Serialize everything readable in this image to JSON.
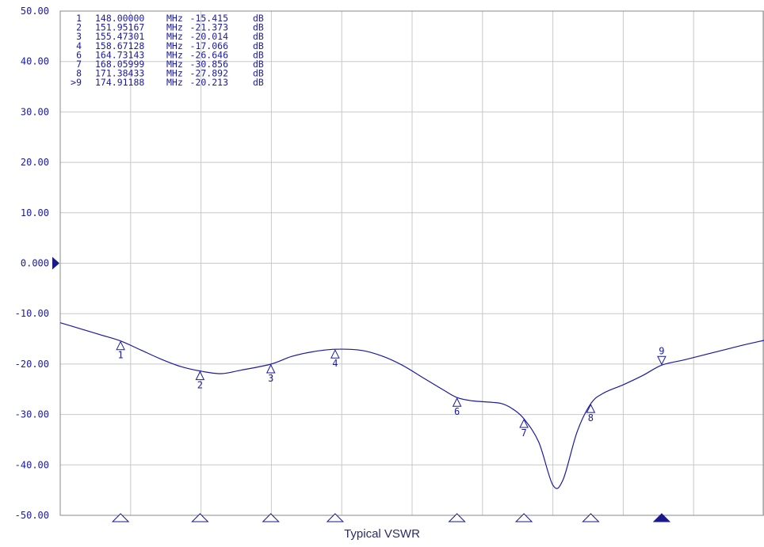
{
  "caption": "Typical VSWR",
  "colors": {
    "trace": "#1a1aa0",
    "grid": "#c8c8c8",
    "text": "#1a1aa0",
    "axis_text": "#1a1aa0"
  },
  "chart_data": {
    "type": "line",
    "title": "",
    "xlabel": "",
    "ylabel": "",
    "xunit": "MHz",
    "yunit": "dB",
    "xlim": [
      145.0,
      180.0
    ],
    "ylim": [
      -50,
      50
    ],
    "y_ticks": [
      "50.00",
      "40.00",
      "30.00",
      "20.00",
      "10.00",
      "0.000",
      "-10.00",
      "-20.00",
      "-30.00",
      "-40.00",
      "-50.00"
    ],
    "reference_level": 0,
    "grid": true,
    "x_grid_divisions": 10,
    "series": [
      {
        "x": [
          145.0,
          146.0,
          147.0,
          148.0,
          149.0,
          150.0,
          151.0,
          151.95,
          153.0,
          154.0,
          155.47,
          156.5,
          157.5,
          158.67,
          160.0,
          161.0,
          162.0,
          163.0,
          164.0,
          164.73,
          165.5,
          166.5,
          167.0,
          167.5,
          168.06,
          168.8,
          169.5,
          170.0,
          170.7,
          171.38,
          172.0,
          173.0,
          174.0,
          174.91,
          176.0,
          177.0,
          178.0,
          179.0,
          180.0
        ],
        "y": [
          -11.8,
          -13.0,
          -14.2,
          -15.415,
          -17.2,
          -19.0,
          -20.5,
          -21.373,
          -21.9,
          -21.2,
          -20.014,
          -18.5,
          -17.6,
          -17.066,
          -17.3,
          -18.4,
          -20.2,
          -22.6,
          -25.0,
          -26.646,
          -27.3,
          -27.6,
          -27.9,
          -28.9,
          -30.856,
          -35.5,
          -44.0,
          -43.0,
          -33.5,
          -27.892,
          -25.8,
          -24.1,
          -22.2,
          -20.213,
          -19.2,
          -18.2,
          -17.2,
          -16.2,
          -15.3
        ]
      }
    ],
    "markers": [
      {
        "id": "1",
        "label": "1",
        "freq": "148.00000",
        "value": "-15.415",
        "x": 148.0,
        "y": -15.415,
        "active": false
      },
      {
        "id": "2",
        "label": "2",
        "freq": "151.95167",
        "value": "-21.373",
        "x": 151.95167,
        "y": -21.373,
        "active": false
      },
      {
        "id": "3",
        "label": "3",
        "freq": "155.47301",
        "value": "-20.014",
        "x": 155.47301,
        "y": -20.014,
        "active": false
      },
      {
        "id": "4",
        "label": "4",
        "freq": "158.67128",
        "value": "-17.066",
        "x": 158.67128,
        "y": -17.066,
        "active": false
      },
      {
        "id": "6",
        "label": "6",
        "freq": "164.73143",
        "value": "-26.646",
        "x": 164.73143,
        "y": -26.646,
        "active": false
      },
      {
        "id": "7",
        "label": "7",
        "freq": "168.05999",
        "value": "-30.856",
        "x": 168.05999,
        "y": -30.856,
        "active": false
      },
      {
        "id": "8",
        "label": "8",
        "freq": "171.38433",
        "value": "-27.892",
        "x": 171.38433,
        "y": -27.892,
        "active": false
      },
      {
        "id": ">9",
        "label": "9",
        "freq": "174.91188",
        "value": "-20.213",
        "x": 174.91188,
        "y": -20.213,
        "active": true
      }
    ],
    "marker_table_units": {
      "freq": "MHz",
      "value": "dB"
    }
  }
}
